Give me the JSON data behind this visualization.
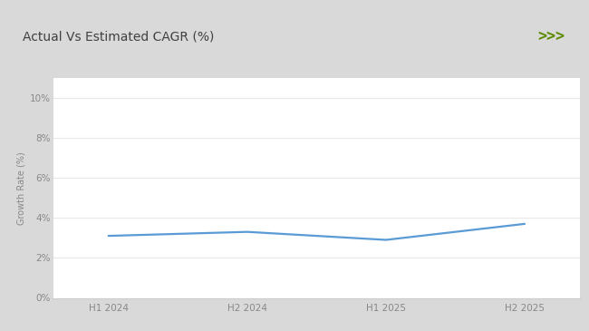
{
  "title": "Actual Vs Estimated CAGR (%)",
  "x_labels": [
    "H1 2024",
    "H2 2024",
    "H1 2025",
    "H2 2025"
  ],
  "x_values": [
    0,
    1,
    2,
    3
  ],
  "y_values": [
    3.1,
    3.3,
    2.9,
    3.7
  ],
  "line_color": "#5b9bd5",
  "line_width": 1.6,
  "ylabel": "Growth Rate (%)",
  "yticks": [
    0,
    2,
    4,
    6,
    8,
    10
  ],
  "ytick_labels": [
    "0%",
    "2%",
    "4%",
    "6%",
    "8%",
    "10%"
  ],
  "ylim": [
    0,
    11
  ],
  "background_color": "#ffffff",
  "outer_bg_color": "#d9d9d9",
  "title_fontsize": 10,
  "axis_fontsize": 7.5,
  "ylabel_fontsize": 7,
  "green_bar_color": "#92d050",
  "chevron_color": "#5a8a00",
  "grid_color": "#e8e8e8",
  "tick_color": "#888888",
  "spine_color": "#cccccc"
}
